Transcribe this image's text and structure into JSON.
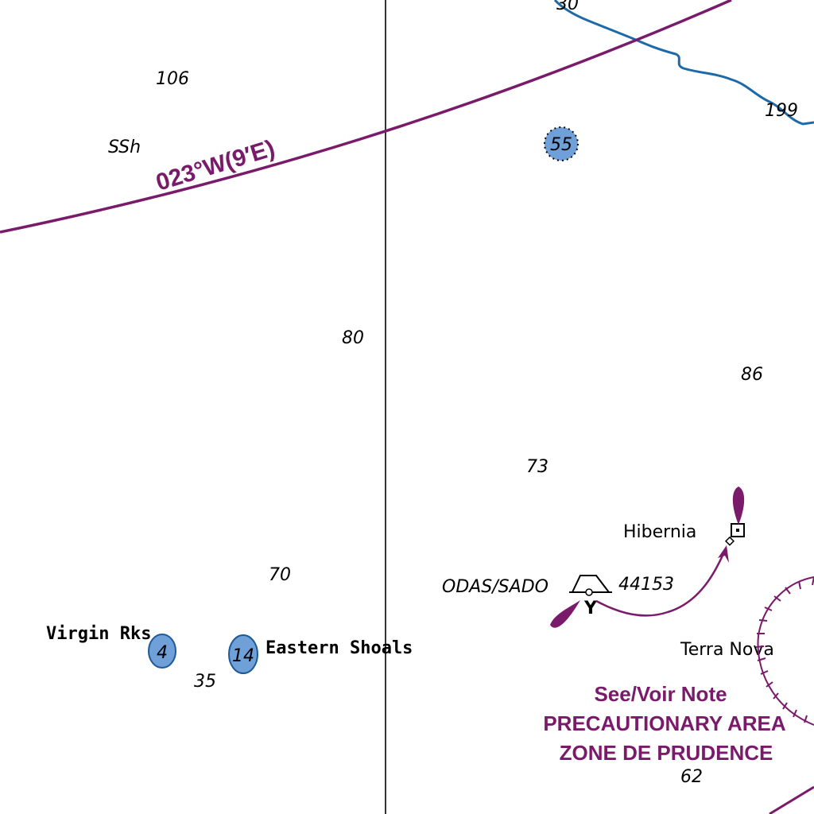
{
  "map": {
    "magnetic_variation": "023°W(9′E)",
    "soundings": [
      "106",
      "80",
      "86",
      "73",
      "70",
      "35",
      "62",
      "199",
      "30"
    ],
    "shoals": [
      {
        "depth": "55",
        "style": "dotted"
      },
      {
        "depth": "4"
      },
      {
        "depth": "14"
      }
    ],
    "labels": {
      "ssh": "SSh",
      "virgin_rks": "Virgin Rks",
      "eastern_shoals": "Eastern Shoals",
      "hibernia": "Hibernia",
      "terra_nova": "Terra Nova",
      "odas": "ODAS/SADO",
      "buoy_id": "44153",
      "buoy_mark": "Y"
    },
    "precautionary_note": {
      "line1": "See/Voir Note",
      "line2": "PRECAUTIONARY AREA",
      "line3": "ZONE DE PRUDENCE"
    },
    "colors": {
      "magenta": "#7a1a6a",
      "depth_contour": "#1e6aa8",
      "shoal_fill": "#6fa0d8",
      "shoal_stroke": "#1e5a9a",
      "meridian": "#000000"
    }
  }
}
